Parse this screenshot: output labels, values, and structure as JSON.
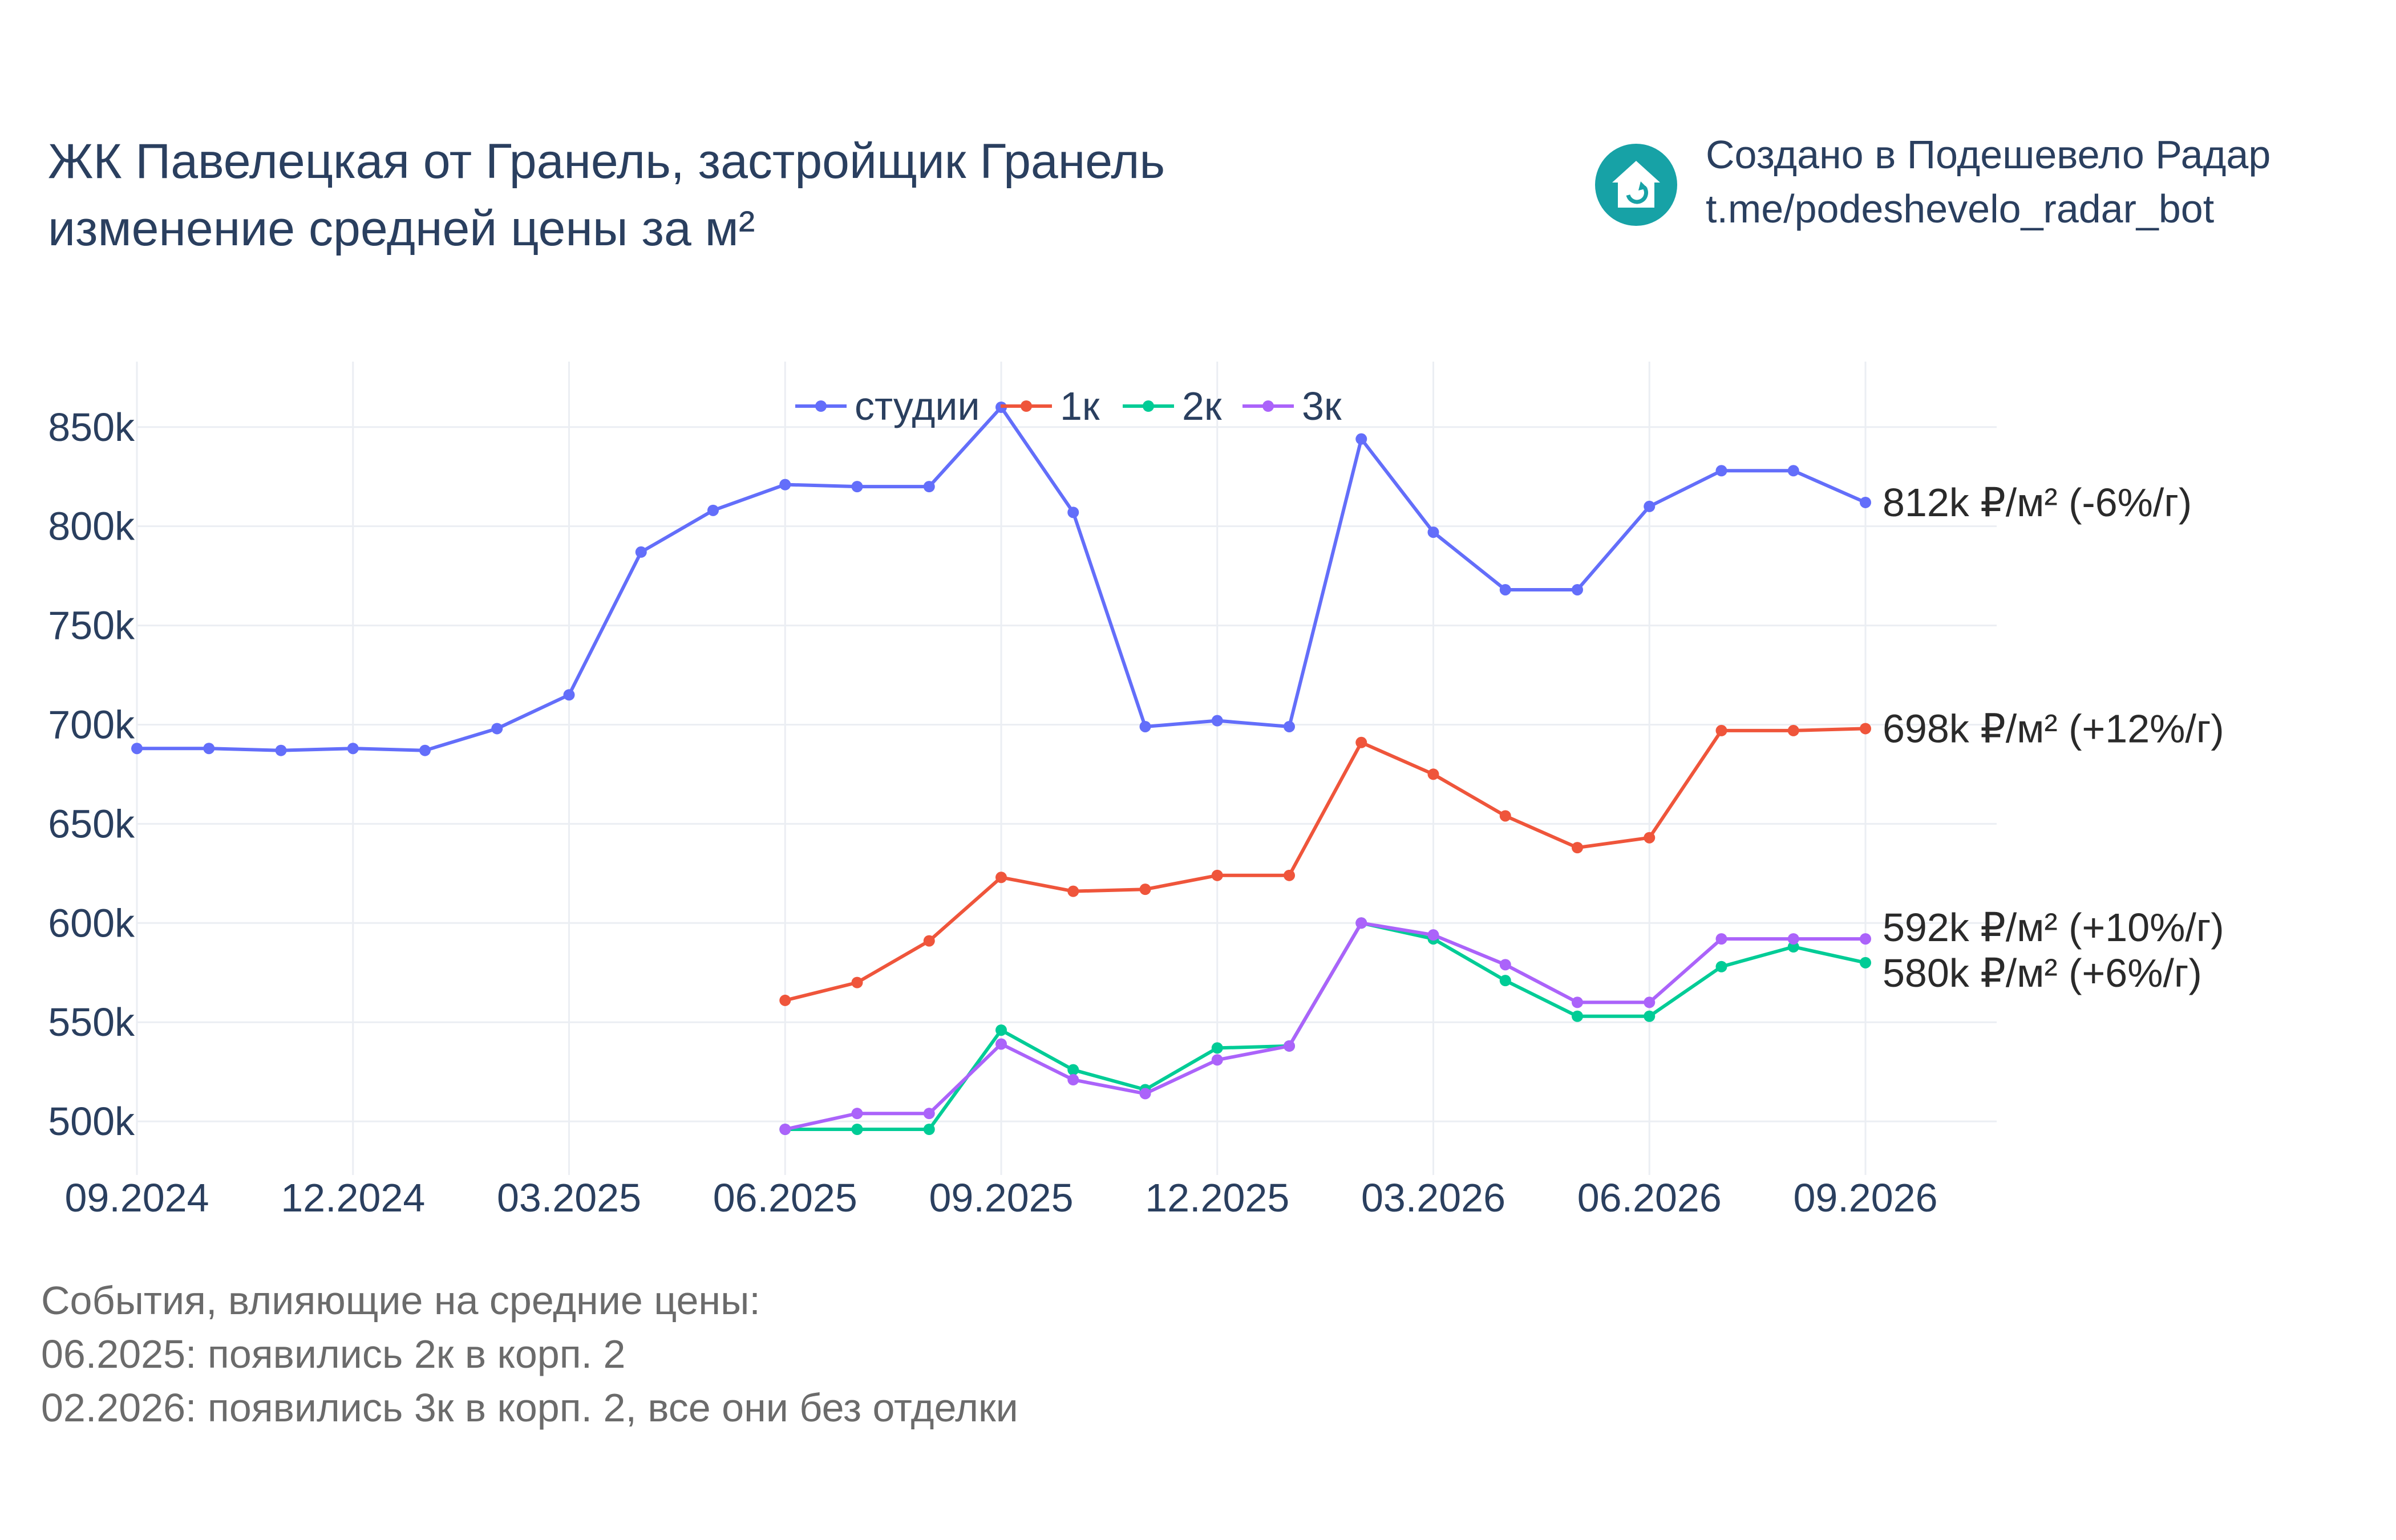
{
  "header": {
    "title_lines": [
      "ЖК Павелецкая от Гранель, застройщик Гранель",
      "изменение средней цены за м²"
    ]
  },
  "branding": {
    "icon": "house-refresh-icon",
    "lines": [
      "Создано в Подешевело Радар",
      "t.me/podeshevelo_radar_bot"
    ],
    "color": "#17a2a6"
  },
  "chart_data": {
    "type": "line",
    "x": [
      "09.2024",
      "10.2024",
      "11.2024",
      "12.2024",
      "01.2025",
      "02.2025",
      "03.2025",
      "04.2025",
      "05.2025",
      "06.2025",
      "07.2025",
      "08.2025",
      "09.2025",
      "10.2025",
      "11.2025",
      "12.2025",
      "01.2026",
      "02.2026",
      "03.2026",
      "04.2026",
      "05.2026",
      "06.2026",
      "07.2026",
      "08.2026",
      "09.2026"
    ],
    "xticks": [
      "09.2024",
      "12.2024",
      "03.2025",
      "06.2025",
      "09.2025",
      "12.2025",
      "03.2026",
      "06.2026",
      "09.2026"
    ],
    "yticks": [
      500000,
      550000,
      600000,
      650000,
      700000,
      750000,
      800000,
      850000
    ],
    "ytick_labels": [
      "500k",
      "550k",
      "600k",
      "650k",
      "700k",
      "750k",
      "800k",
      "850k"
    ],
    "ylim": [
      473000,
      883000
    ],
    "grid": true,
    "legend": "top-center, horizontal",
    "series": [
      {
        "name": "студии",
        "color": "#636efa",
        "values": [
          688000,
          688000,
          687000,
          688000,
          687000,
          698000,
          715000,
          787000,
          808000,
          821000,
          820000,
          820000,
          860000,
          807000,
          699000,
          702000,
          699000,
          844000,
          797000,
          768000,
          768000,
          810000,
          828000,
          828000,
          812000
        ],
        "end_label": "812k ₽/м² (-6%/г)"
      },
      {
        "name": "1к",
        "color": "#ef553b",
        "values": [
          null,
          null,
          null,
          null,
          null,
          null,
          null,
          null,
          null,
          561000,
          570000,
          591000,
          623000,
          616000,
          617000,
          624000,
          624000,
          691000,
          675000,
          654000,
          638000,
          643000,
          697000,
          697000,
          698000
        ],
        "end_label": "698k ₽/м² (+12%/г)"
      },
      {
        "name": "2к",
        "color": "#00cc96",
        "values": [
          null,
          null,
          null,
          null,
          null,
          null,
          null,
          null,
          null,
          496000,
          496000,
          496000,
          546000,
          526000,
          516000,
          537000,
          538000,
          600000,
          592000,
          571000,
          553000,
          553000,
          578000,
          588000,
          580000
        ],
        "end_label": "580k ₽/м² (+6%/г)"
      },
      {
        "name": "3к",
        "color": "#ab63fa",
        "values": [
          null,
          null,
          null,
          null,
          null,
          null,
          null,
          null,
          null,
          496000,
          504000,
          504000,
          539000,
          521000,
          514000,
          531000,
          538000,
          600000,
          594000,
          579000,
          560000,
          560000,
          592000,
          592000,
          592000
        ],
        "end_label": "592k ₽/м² (+10%/г)"
      }
    ]
  },
  "notes": [
    "События, влияющие на средние цены:",
    "06.2025: появились 2к в корп. 2",
    "02.2026: появились 3к в корп. 2, все они без отделки"
  ]
}
